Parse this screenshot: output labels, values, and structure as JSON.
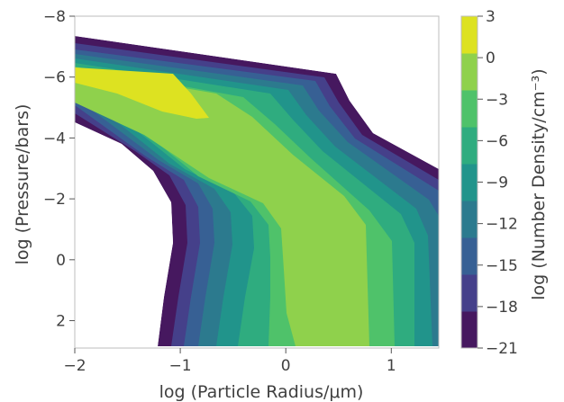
{
  "chart_data": {
    "type": "filled-contour",
    "xlabel": "log (Particle Radius/μm)",
    "ylabel": "log (Pressure/bars)",
    "colorbar_label": "log (Number Density/cm⁻³)",
    "xlim": [
      -2,
      1.45
    ],
    "ylim": [
      2.9,
      -8
    ],
    "x_ticks": [
      {
        "value": -2,
        "label": "−2"
      },
      {
        "value": -1,
        "label": "−1"
      },
      {
        "value": 0,
        "label": "0"
      },
      {
        "value": 1,
        "label": "1"
      }
    ],
    "y_ticks": [
      {
        "value": -8,
        "label": "−8"
      },
      {
        "value": -6,
        "label": "−6"
      },
      {
        "value": -4,
        "label": "−4"
      },
      {
        "value": -2,
        "label": "−2"
      },
      {
        "value": 0,
        "label": "0"
      },
      {
        "value": 2,
        "label": "2"
      }
    ],
    "colorbar_levels": [
      -21,
      -18,
      -15,
      -12,
      -9,
      -6,
      -3,
      0,
      3
    ],
    "colorbar_tick_labels": [
      "−21",
      "−18",
      "−15",
      "−12",
      "−9",
      "−6",
      "−3",
      "0",
      "3"
    ],
    "level_colors": [
      "#46185f",
      "#45408a",
      "#376094",
      "#2c7a8e",
      "#21948b",
      "#2fac7f",
      "#4fc26a",
      "#8fd14c",
      "#dde221"
    ],
    "contour_regions": [
      {
        "level": "-21 to -18",
        "upper_boundary": [
          [
            -2.0,
            -7.3
          ],
          [
            0.4,
            -6.2
          ],
          [
            0.9,
            -4.6
          ],
          [
            1.4,
            -3.1
          ],
          [
            1.45,
            -2.8
          ]
        ],
        "lower_boundary": [
          [
            -2.0,
            -4.5
          ],
          [
            -1.3,
            -2.3
          ],
          [
            -1.05,
            0.0
          ],
          [
            -1.1,
            1.5
          ],
          [
            -1.2,
            2.9
          ]
        ]
      },
      {
        "level": "-3 to 0",
        "region": [
          [
            -2.0,
            -6.0
          ],
          [
            0.0,
            -4.2
          ],
          [
            0.8,
            -1.8
          ],
          [
            0.8,
            2.9
          ],
          [
            -0.9,
            2.9
          ],
          [
            -1.0,
            0.0
          ],
          [
            -2.0,
            -3.5
          ]
        ]
      },
      {
        "level": "0 to 3",
        "region": [
          [
            -2.0,
            -6.4
          ],
          [
            -1.1,
            -6.2
          ],
          [
            -0.75,
            -4.8
          ],
          [
            -1.5,
            -5.0
          ],
          [
            -2.0,
            -5.9
          ]
        ]
      }
    ]
  }
}
